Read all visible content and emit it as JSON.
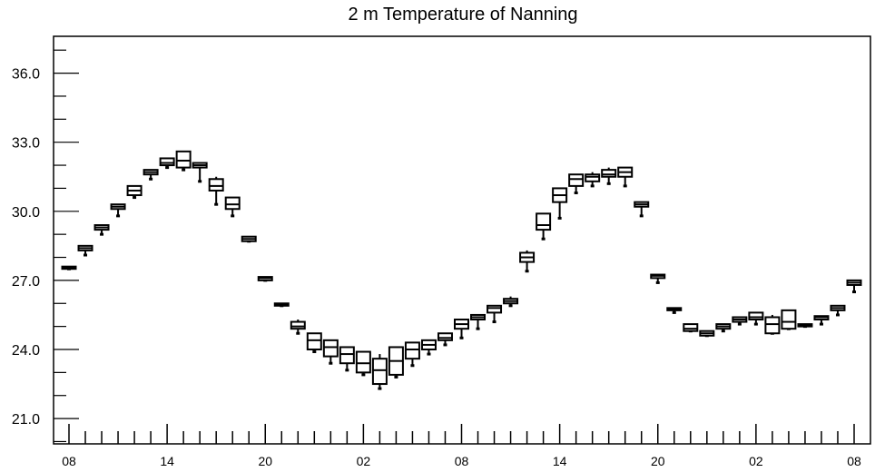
{
  "chart_data": {
    "type": "box",
    "title": "2 m Temperature of Nanning",
    "xlabel": "",
    "ylabel": "",
    "ylim": [
      19.9,
      37.6
    ],
    "yticks": [
      21.0,
      24.0,
      27.0,
      30.0,
      33.0,
      36.0
    ],
    "ytick_labels": [
      "21.0",
      "24.0",
      "27.0",
      "30.0",
      "33.0",
      "36.0"
    ],
    "x_step_hours": 1,
    "x_tick_labels": [
      {
        "hour": 0,
        "label": "08"
      },
      {
        "hour": 6,
        "label": "14"
      },
      {
        "hour": 12,
        "label": "20"
      },
      {
        "hour": 18,
        "label": "02"
      },
      {
        "hour": 24,
        "label": "08"
      },
      {
        "hour": 30,
        "label": "14"
      },
      {
        "hour": 36,
        "label": "20"
      },
      {
        "hour": 42,
        "label": "02"
      },
      {
        "hour": 48,
        "label": "08"
      }
    ],
    "boxes": [
      {
        "hour": 0,
        "min": 27.5,
        "q1": 27.5,
        "median": 27.55,
        "q3": 27.6,
        "max": 27.6
      },
      {
        "hour": 1,
        "min": 28.1,
        "q1": 28.3,
        "median": 28.4,
        "q3": 28.5,
        "max": 28.5
      },
      {
        "hour": 2,
        "min": 29.0,
        "q1": 29.2,
        "median": 29.3,
        "q3": 29.4,
        "max": 29.4
      },
      {
        "hour": 3,
        "min": 29.8,
        "q1": 30.1,
        "median": 30.2,
        "q3": 30.3,
        "max": 30.3
      },
      {
        "hour": 4,
        "min": 30.6,
        "q1": 30.7,
        "median": 30.9,
        "q3": 31.1,
        "max": 31.1
      },
      {
        "hour": 5,
        "min": 31.4,
        "q1": 31.6,
        "median": 31.7,
        "q3": 31.8,
        "max": 31.8
      },
      {
        "hour": 6,
        "min": 31.9,
        "q1": 32.0,
        "median": 32.1,
        "q3": 32.3,
        "max": 32.3
      },
      {
        "hour": 7,
        "min": 31.8,
        "q1": 31.9,
        "median": 32.2,
        "q3": 32.6,
        "max": 32.6
      },
      {
        "hour": 8,
        "min": 31.3,
        "q1": 31.9,
        "median": 32.0,
        "q3": 32.1,
        "max": 32.1
      },
      {
        "hour": 9,
        "min": 30.3,
        "q1": 30.9,
        "median": 31.1,
        "q3": 31.4,
        "max": 31.5
      },
      {
        "hour": 10,
        "min": 29.8,
        "q1": 30.1,
        "median": 30.3,
        "q3": 30.6,
        "max": 30.6
      },
      {
        "hour": 11,
        "min": 28.7,
        "q1": 28.7,
        "median": 28.8,
        "q3": 28.9,
        "max": 28.9
      },
      {
        "hour": 12,
        "min": 27.0,
        "q1": 27.0,
        "median": 27.1,
        "q3": 27.15,
        "max": 27.15
      },
      {
        "hour": 13,
        "min": 25.9,
        "q1": 25.9,
        "median": 25.95,
        "q3": 26.0,
        "max": 26.0
      },
      {
        "hour": 14,
        "min": 24.7,
        "q1": 24.9,
        "median": 25.0,
        "q3": 25.2,
        "max": 25.3
      },
      {
        "hour": 15,
        "min": 23.9,
        "q1": 24.0,
        "median": 24.4,
        "q3": 24.7,
        "max": 24.7
      },
      {
        "hour": 16,
        "min": 23.4,
        "q1": 23.7,
        "median": 24.1,
        "q3": 24.4,
        "max": 24.4
      },
      {
        "hour": 17,
        "min": 23.1,
        "q1": 23.4,
        "median": 23.8,
        "q3": 24.1,
        "max": 24.1
      },
      {
        "hour": 18,
        "min": 22.9,
        "q1": 23.0,
        "median": 23.4,
        "q3": 23.9,
        "max": 23.9
      },
      {
        "hour": 19,
        "min": 22.3,
        "q1": 22.5,
        "median": 23.1,
        "q3": 23.6,
        "max": 23.8
      },
      {
        "hour": 20,
        "min": 22.8,
        "q1": 22.9,
        "median": 23.5,
        "q3": 24.1,
        "max": 24.1
      },
      {
        "hour": 21,
        "min": 23.3,
        "q1": 23.6,
        "median": 24.0,
        "q3": 24.3,
        "max": 24.3
      },
      {
        "hour": 22,
        "min": 23.8,
        "q1": 24.0,
        "median": 24.2,
        "q3": 24.4,
        "max": 24.4
      },
      {
        "hour": 23,
        "min": 24.2,
        "q1": 24.4,
        "median": 24.5,
        "q3": 24.7,
        "max": 24.7
      },
      {
        "hour": 24,
        "min": 24.5,
        "q1": 24.9,
        "median": 25.1,
        "q3": 25.3,
        "max": 25.3
      },
      {
        "hour": 25,
        "min": 24.9,
        "q1": 25.3,
        "median": 25.4,
        "q3": 25.5,
        "max": 25.5
      },
      {
        "hour": 26,
        "min": 25.2,
        "q1": 25.6,
        "median": 25.8,
        "q3": 25.9,
        "max": 25.9
      },
      {
        "hour": 27,
        "min": 25.9,
        "q1": 26.0,
        "median": 26.1,
        "q3": 26.2,
        "max": 26.3
      },
      {
        "hour": 28,
        "min": 27.4,
        "q1": 27.8,
        "median": 28.0,
        "q3": 28.2,
        "max": 28.3
      },
      {
        "hour": 29,
        "min": 28.8,
        "q1": 29.2,
        "median": 29.4,
        "q3": 29.9,
        "max": 29.9
      },
      {
        "hour": 30,
        "min": 29.7,
        "q1": 30.4,
        "median": 30.7,
        "q3": 31.0,
        "max": 31.0
      },
      {
        "hour": 31,
        "min": 30.8,
        "q1": 31.1,
        "median": 31.4,
        "q3": 31.6,
        "max": 31.6
      },
      {
        "hour": 32,
        "min": 31.1,
        "q1": 31.3,
        "median": 31.5,
        "q3": 31.6,
        "max": 31.7
      },
      {
        "hour": 33,
        "min": 31.2,
        "q1": 31.5,
        "median": 31.6,
        "q3": 31.8,
        "max": 31.9
      },
      {
        "hour": 34,
        "min": 31.1,
        "q1": 31.5,
        "median": 31.7,
        "q3": 31.9,
        "max": 31.9
      },
      {
        "hour": 35,
        "min": 29.8,
        "q1": 30.2,
        "median": 30.3,
        "q3": 30.4,
        "max": 30.4
      },
      {
        "hour": 36,
        "min": 26.9,
        "q1": 27.1,
        "median": 27.2,
        "q3": 27.25,
        "max": 27.25
      },
      {
        "hour": 37,
        "min": 25.6,
        "q1": 25.7,
        "median": 25.75,
        "q3": 25.8,
        "max": 25.8
      },
      {
        "hour": 38,
        "min": 24.8,
        "q1": 24.8,
        "median": 24.9,
        "q3": 25.1,
        "max": 25.1
      },
      {
        "hour": 39,
        "min": 24.6,
        "q1": 24.6,
        "median": 24.7,
        "q3": 24.8,
        "max": 24.8
      },
      {
        "hour": 40,
        "min": 24.8,
        "q1": 24.9,
        "median": 25.0,
        "q3": 25.1,
        "max": 25.1
      },
      {
        "hour": 41,
        "min": 25.1,
        "q1": 25.2,
        "median": 25.3,
        "q3": 25.4,
        "max": 25.4
      },
      {
        "hour": 42,
        "min": 25.1,
        "q1": 25.3,
        "median": 25.4,
        "q3": 25.6,
        "max": 25.6
      },
      {
        "hour": 43,
        "min": 24.7,
        "q1": 24.7,
        "median": 25.1,
        "q3": 25.4,
        "max": 25.5
      },
      {
        "hour": 44,
        "min": 24.9,
        "q1": 24.9,
        "median": 25.2,
        "q3": 25.7,
        "max": 25.7
      },
      {
        "hour": 45,
        "min": 25.0,
        "q1": 25.0,
        "median": 25.05,
        "q3": 25.1,
        "max": 25.1
      },
      {
        "hour": 46,
        "min": 25.1,
        "q1": 25.3,
        "median": 25.4,
        "q3": 25.45,
        "max": 25.45
      },
      {
        "hour": 47,
        "min": 25.5,
        "q1": 25.7,
        "median": 25.8,
        "q3": 25.9,
        "max": 25.9
      },
      {
        "hour": 48,
        "min": 26.5,
        "q1": 26.8,
        "median": 26.9,
        "q3": 27.0,
        "max": 27.0
      }
    ]
  }
}
